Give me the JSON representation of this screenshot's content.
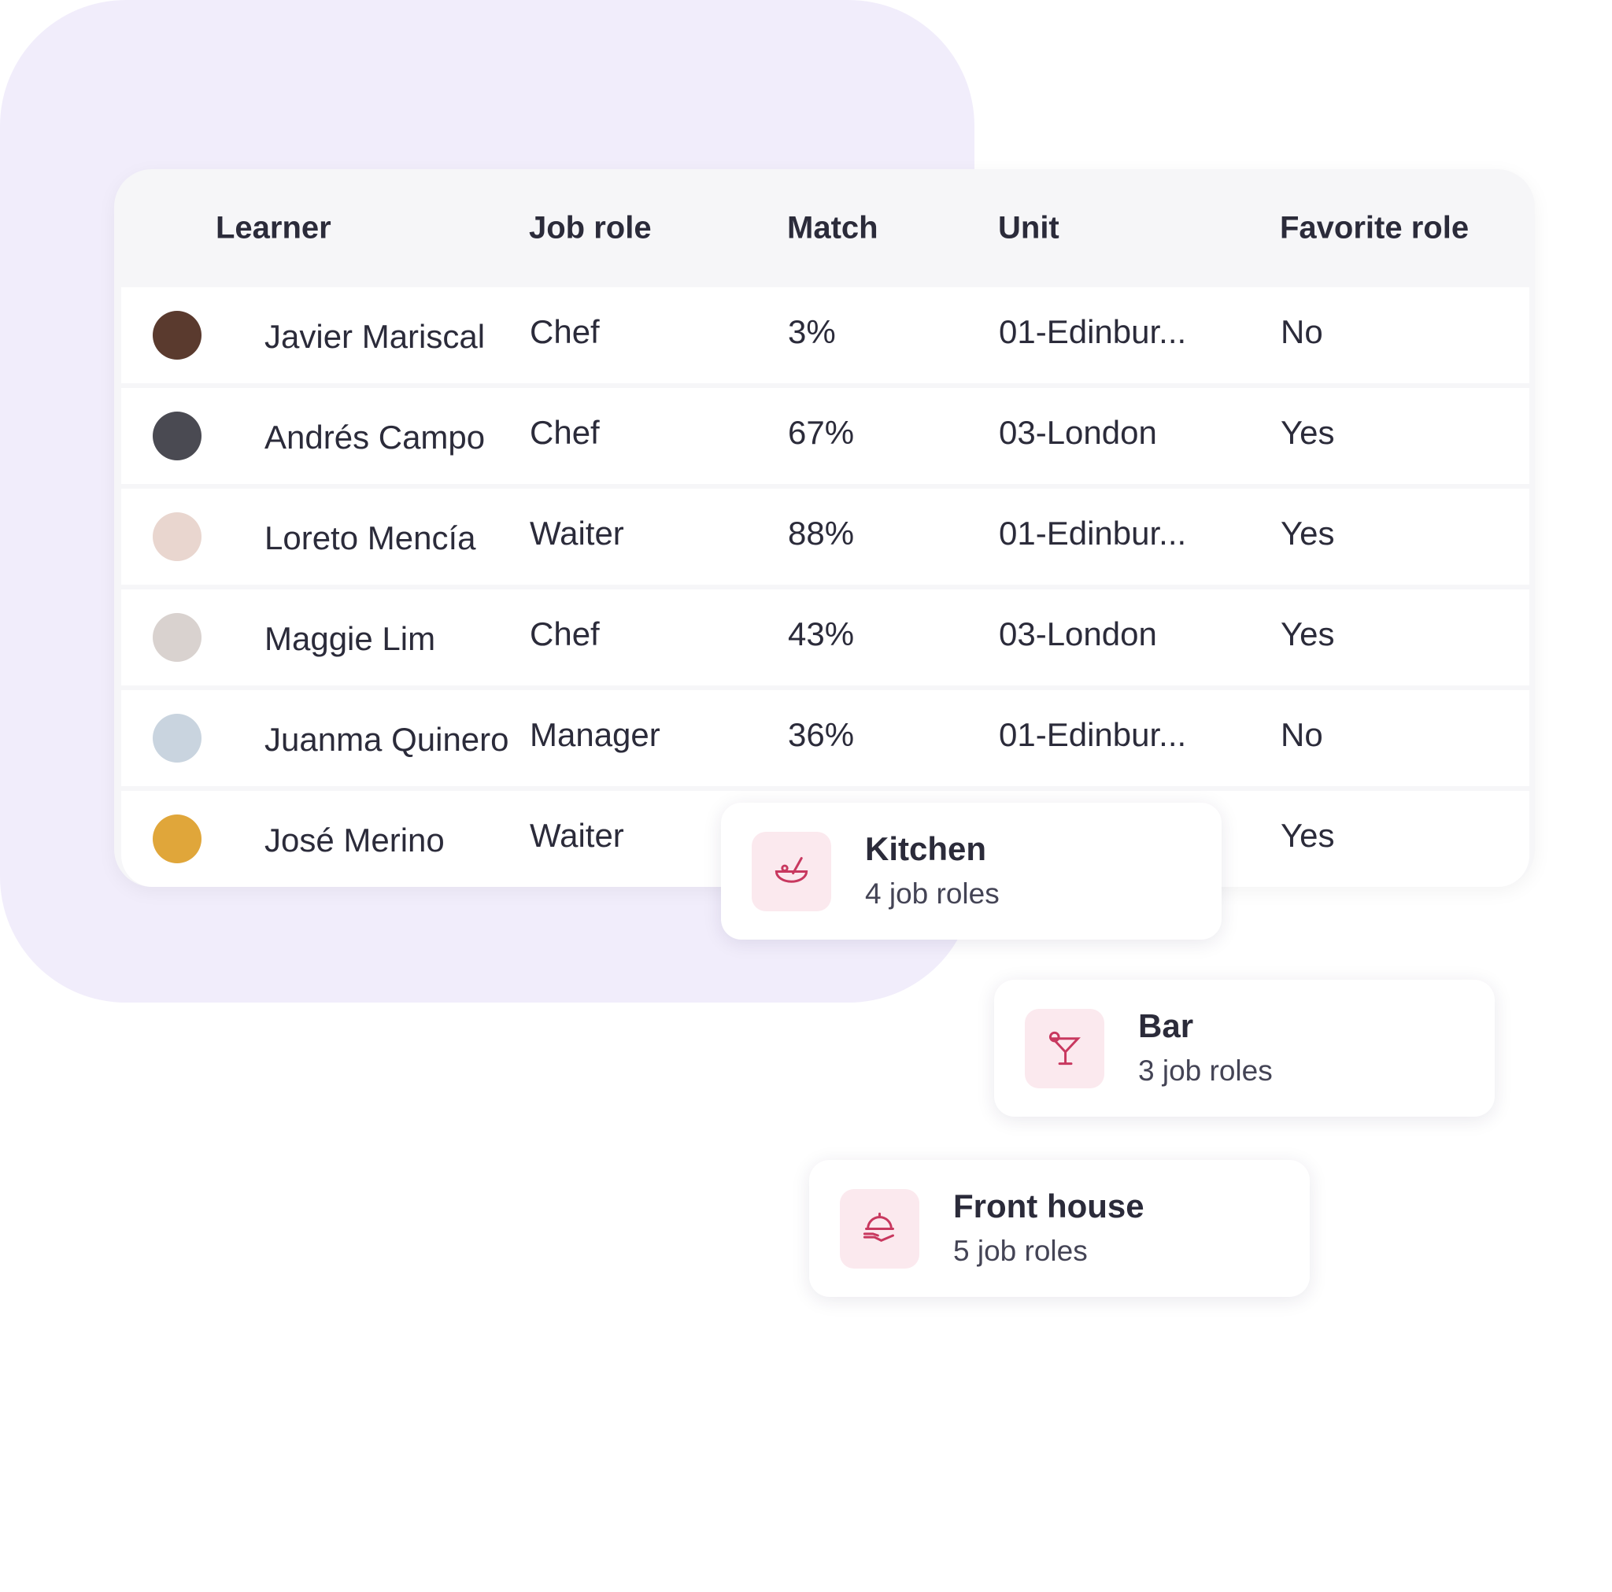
{
  "table": {
    "headers": [
      "Learner",
      "Job role",
      "Match",
      "Unit",
      "Favorite role"
    ],
    "rows": [
      [
        "Javier Mariscal",
        "Chef",
        "3%",
        "01-Edinbur...",
        "No"
      ],
      [
        "Andrés Campo",
        "Chef",
        "67%",
        "03-London",
        "Yes"
      ],
      [
        "Loreto Mencía",
        "Waiter",
        "88%",
        "01-Edinbur...",
        "Yes"
      ],
      [
        "Maggie Lim",
        "Chef",
        "43%",
        "03-London",
        "Yes"
      ],
      [
        "Juanma Quinero",
        "Manager",
        "36%",
        "01-Edinbur...",
        "No"
      ],
      [
        "José Merino",
        "Waiter",
        null,
        null,
        "Yes"
      ]
    ]
  },
  "cards": [
    {
      "title": "Kitchen",
      "subtitle": "4 job roles"
    },
    {
      "title": "Bar",
      "subtitle": "3 job roles"
    },
    {
      "title": "Front house",
      "subtitle": "5 job roles"
    }
  ]
}
